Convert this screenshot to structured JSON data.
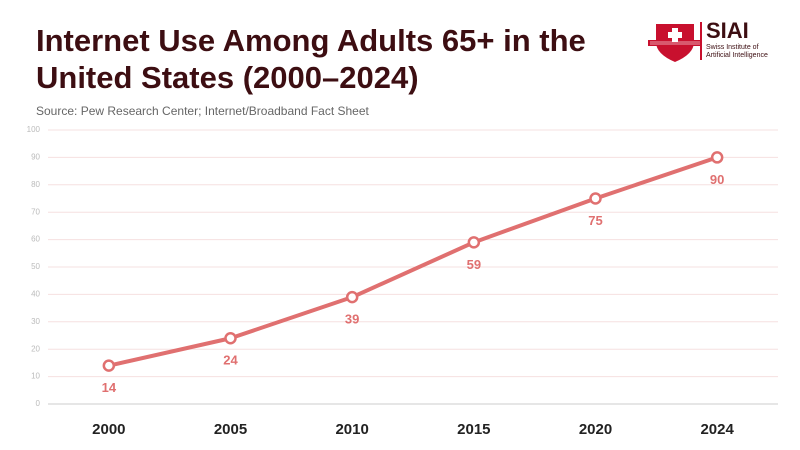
{
  "logo": {
    "name": "SIAI",
    "tagline": [
      "Swiss Institute of",
      "Artificial Intelligence"
    ]
  },
  "chart_data": {
    "type": "line",
    "title": "Internet Use Among Adults 65+ in the United States (2000–2024)",
    "subtitle": "Source: Pew Research Center; Internet/Broadband Fact Sheet",
    "categories": [
      "2000",
      "2005",
      "2010",
      "2015",
      "2020",
      "2024"
    ],
    "values": [
      14,
      24,
      39,
      59,
      75,
      90
    ],
    "color": "#e07070",
    "ylim": [
      0,
      100
    ],
    "yticks": [
      0,
      10,
      20,
      30,
      40,
      50,
      60,
      70,
      80,
      90,
      100
    ],
    "grid": true
  }
}
